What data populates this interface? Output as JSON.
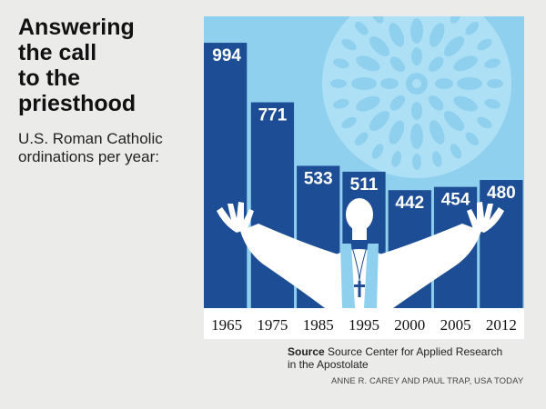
{
  "header": {
    "title_lines": [
      "Answering",
      "the call",
      "to the",
      "priesthood"
    ],
    "subtitle_lines": [
      "U.S. Roman Catholic",
      "ordinations per year:"
    ]
  },
  "chart_data": {
    "type": "bar",
    "categories": [
      "1965",
      "1975",
      "1985",
      "1995",
      "2000",
      "2005",
      "2012"
    ],
    "values": [
      994,
      771,
      533,
      511,
      442,
      454,
      480
    ],
    "title": "Answering the call to the priesthood",
    "subtitle": "U.S. Roman Catholic ordinations per year:",
    "xlabel": "",
    "ylabel": "",
    "data_labels": [
      "994",
      "771",
      "533",
      "511",
      "442",
      "454",
      "480"
    ],
    "grid": false,
    "colors": {
      "bar": "#1c4d95",
      "sky": "#8fd0ee",
      "rose": "#aee0f5",
      "figure": "#ffffff",
      "stole": "#8fd0ee",
      "axis_text": "#111111"
    }
  },
  "footer": {
    "source_label": "Source",
    "source_text": "Source Center for Applied Research",
    "source_text_2": "in the Apostolate",
    "credit": "ANNE R. CAREY AND PAUL TRAP, USA TODAY"
  }
}
